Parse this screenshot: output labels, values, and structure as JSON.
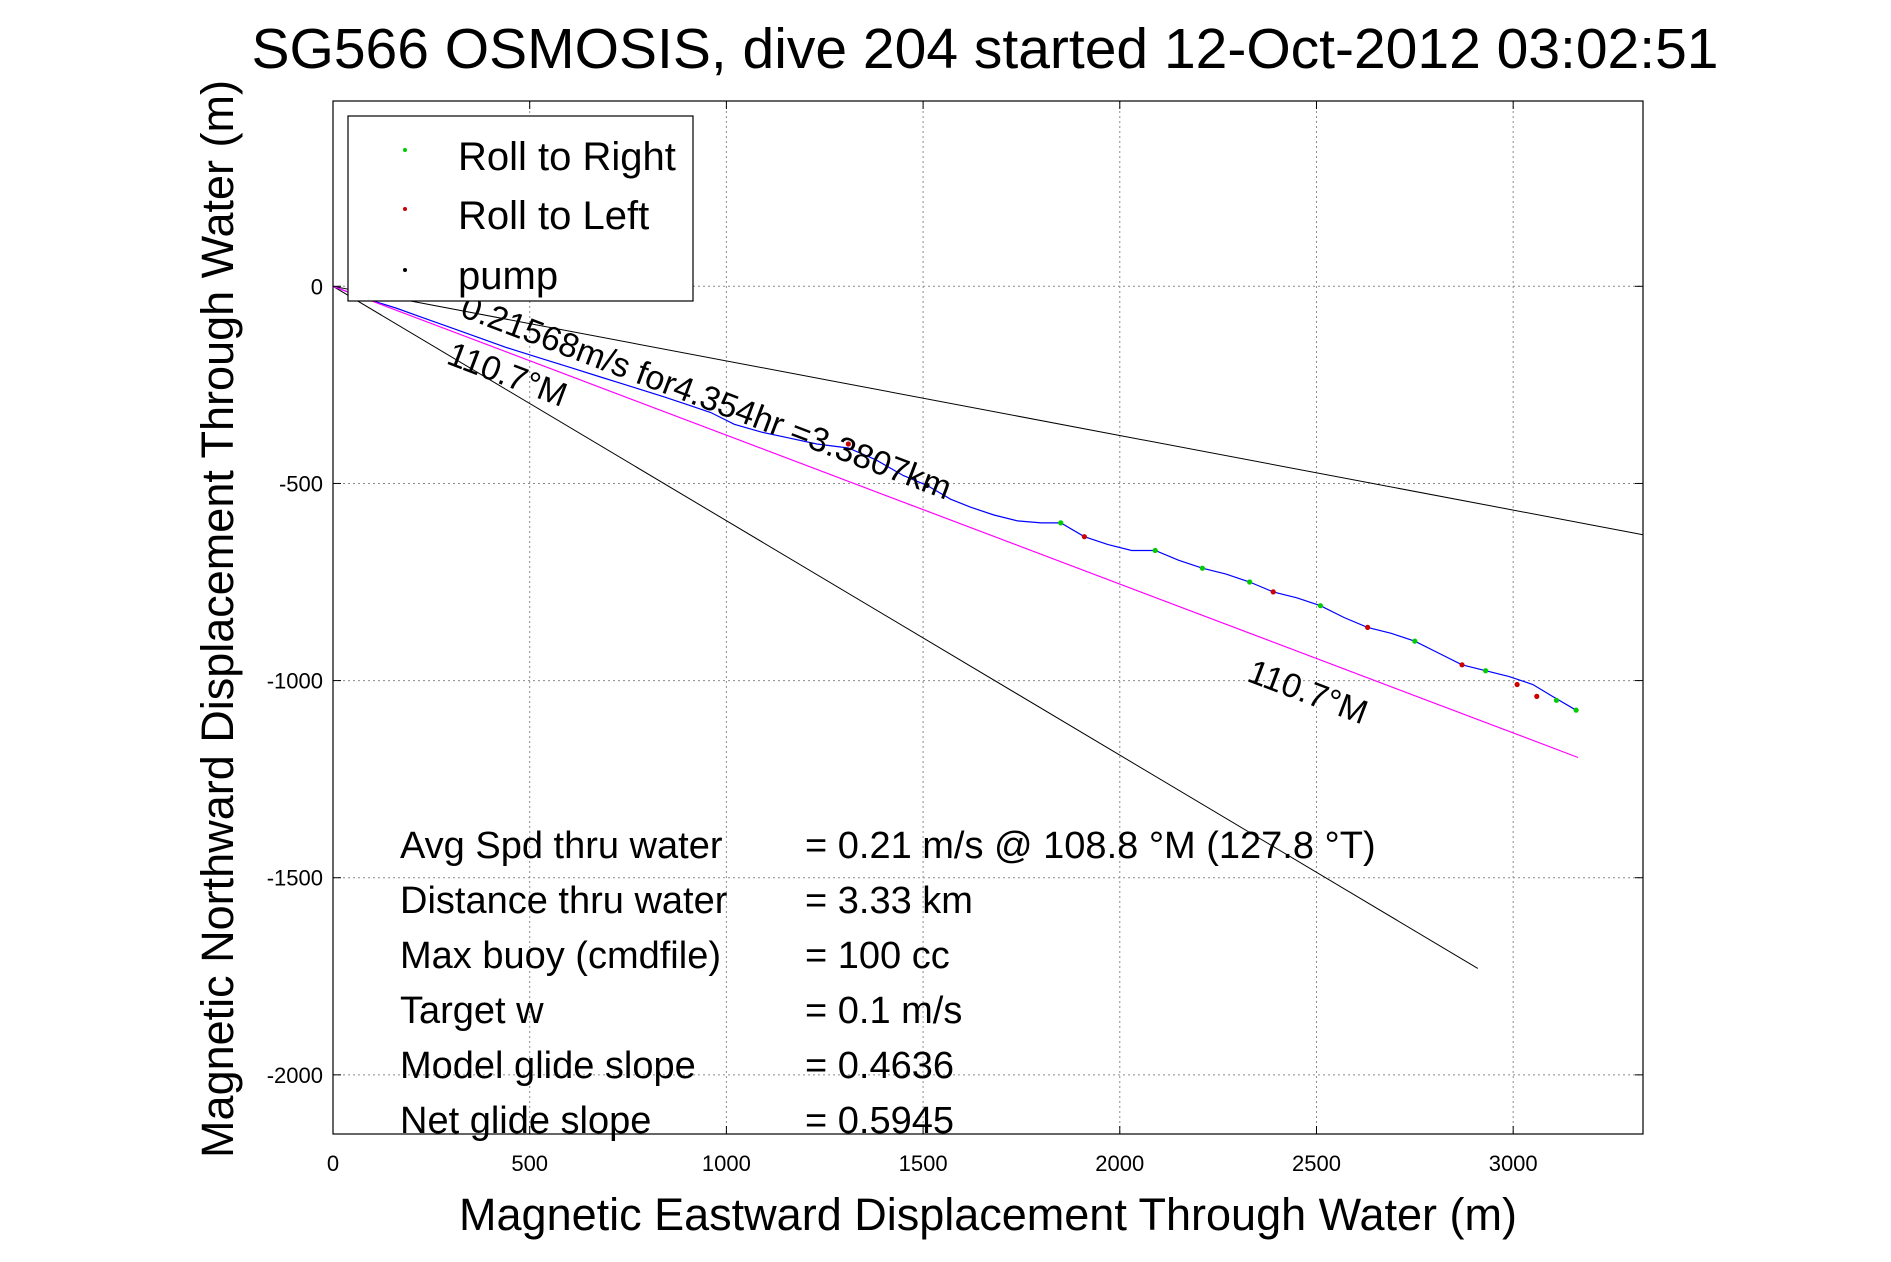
{
  "chart_data": {
    "type": "line",
    "title": "SG566 OSMOSIS, dive 204 started 12-Oct-2012 03:02:51",
    "xlabel": "Magnetic Eastward Displacement Through Water (m)",
    "ylabel": "Magnetic Northward Displacement Through Water (m)",
    "xlim": [
      0,
      3330
    ],
    "ylim": [
      -2150,
      470
    ],
    "xticks": [
      0,
      500,
      1000,
      1500,
      2000,
      2500,
      3000
    ],
    "yticks": [
      0,
      -500,
      -1000,
      -1500,
      -2000
    ],
    "grid": true,
    "legend": {
      "placement": "top-left",
      "entries": [
        {
          "label": "Roll to Right",
          "color": "#00cc00"
        },
        {
          "label": "Roll to Left",
          "color": "#cc0000"
        },
        {
          "label": "pump",
          "color": "#000000"
        }
      ]
    },
    "series": [
      {
        "color": "#0000ff",
        "x": [
          0,
          40,
          95,
          160,
          230,
          300,
          370,
          440,
          520,
          600,
          680,
          760,
          840,
          900,
          960,
          1020,
          1090,
          1160,
          1230,
          1310,
          1380,
          1450,
          1510,
          1570,
          1620,
          1680,
          1740,
          1800,
          1850,
          1910,
          1970,
          2030,
          2090,
          2150,
          2210,
          2270,
          2330,
          2390,
          2450,
          2510,
          2570,
          2630,
          2690,
          2750,
          2810,
          2870,
          2930,
          2990,
          3050,
          3100,
          3160
        ],
        "y": [
          0,
          -15,
          -35,
          -55,
          -80,
          -105,
          -130,
          -155,
          -180,
          -205,
          -230,
          -255,
          -280,
          -300,
          -320,
          -350,
          -370,
          -385,
          -400,
          -410,
          -440,
          -480,
          -505,
          -540,
          -560,
          -580,
          -595,
          -600,
          -600,
          -635,
          -655,
          -670,
          -670,
          -695,
          -715,
          -730,
          -750,
          -775,
          -790,
          -810,
          -840,
          -865,
          -880,
          -900,
          -930,
          -960,
          -975,
          -990,
          -1010,
          -1040,
          -1075
        ]
      },
      {
        "color": "#ff00ff",
        "x": [
          0,
          3165
        ],
        "y": [
          0,
          -1195
        ]
      }
    ],
    "bounding_lines": [
      {
        "x": [
          0,
          3330
        ],
        "y": [
          0,
          -630
        ]
      },
      {
        "x": [
          0,
          2910
        ],
        "y": [
          0,
          -1730
        ]
      }
    ],
    "markers": {
      "roll_right": {
        "x": [
          1850,
          2090,
          2210,
          2330,
          2510,
          2750,
          2930,
          3110,
          3160
        ],
        "y": [
          -600,
          -670,
          -715,
          -750,
          -810,
          -900,
          -975,
          -1050,
          -1075
        ]
      },
      "roll_left": {
        "x": [
          1310,
          1910,
          2390,
          2630,
          2870,
          3010,
          3060
        ],
        "y": [
          -400,
          -635,
          -775,
          -865,
          -960,
          -1010,
          -1040
        ]
      },
      "pump": {
        "x": [
          1510
        ],
        "y": [
          -505
        ]
      }
    },
    "annotations": [
      {
        "text": "0.21568m/s for4.354hr =3.3807km",
        "x": 320,
        "y": -75,
        "angle": 20.7
      },
      {
        "text": "110.7°M",
        "x": 285,
        "y": -195,
        "angle": 20.7
      },
      {
        "text": "110.7°M",
        "x": 2320,
        "y": -1000,
        "angle": 20.7
      }
    ],
    "stats": [
      {
        "label": "Avg Spd thru water",
        "value": "=  0.21 m/s @ 108.8 °M (127.8 °T)"
      },
      {
        "label": "Distance thru water",
        "value": "=  3.33 km"
      },
      {
        "label": "Max buoy (cmdfile)",
        "value": "= 100 cc"
      },
      {
        "label": "Target w",
        "value": "= 0.1 m/s"
      },
      {
        "label": "Model glide slope",
        "value": "= 0.4636"
      },
      {
        "label": "Net glide slope",
        "value": "= 0.5945"
      }
    ]
  }
}
